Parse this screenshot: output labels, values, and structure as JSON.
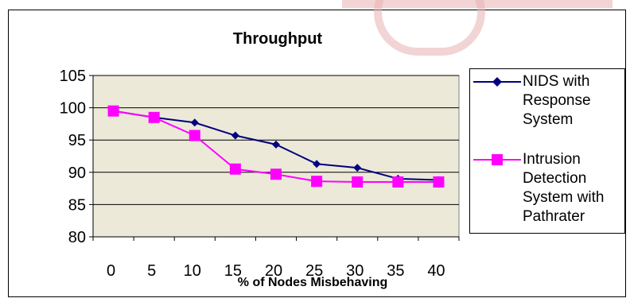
{
  "chart_data": {
    "type": "line",
    "title": "Throughput",
    "xlabel": "% of Nodes Misbehaving",
    "ylabel": "",
    "categories": [
      "0",
      "5",
      "10",
      "15",
      "20",
      "25",
      "30",
      "35",
      "40"
    ],
    "ylim": [
      80,
      105
    ],
    "yticks": [
      80,
      85,
      90,
      95,
      100,
      105
    ],
    "grid": true,
    "legend_position": "right",
    "plot_background": "#ece9d8",
    "series": [
      {
        "name": "NIDS with Response System",
        "color": "#000080",
        "marker": "diamond",
        "values": [
          99.5,
          98.5,
          97.7,
          95.7,
          94.3,
          91.3,
          90.7,
          89.0,
          88.8
        ]
      },
      {
        "name": "Intrusion Detection System with Pathrater",
        "color": "#ff00ff",
        "marker": "square",
        "values": [
          99.5,
          98.5,
          95.7,
          90.5,
          89.7,
          88.6,
          88.5,
          88.5,
          88.5
        ]
      }
    ]
  }
}
